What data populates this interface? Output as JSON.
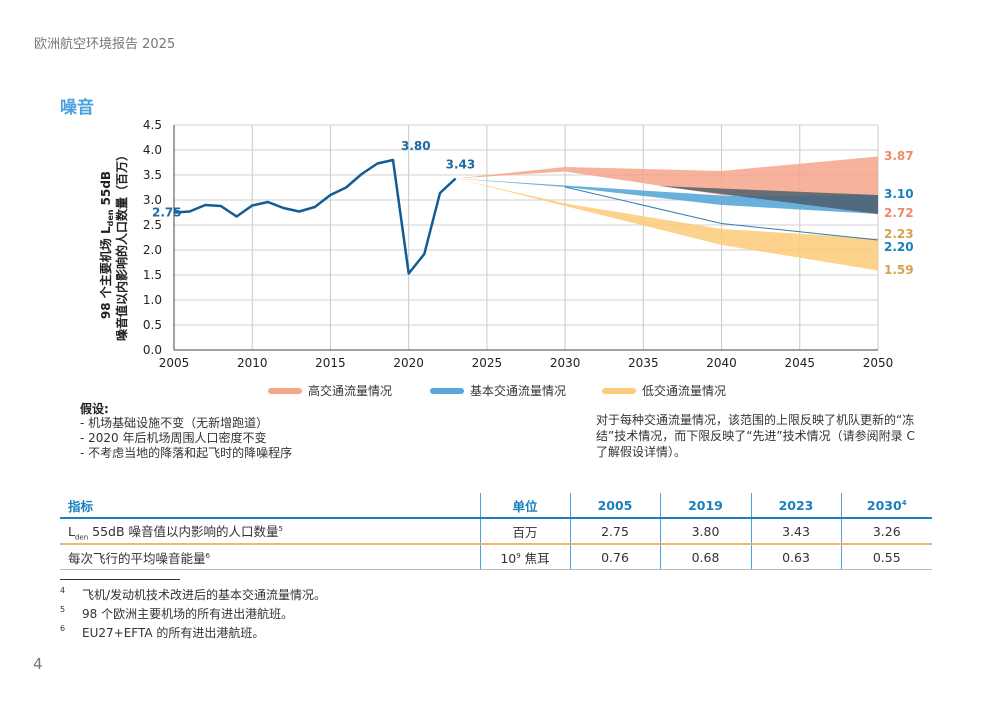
{
  "header": "欧洲航空环境报告 2025",
  "section_title": "噪音",
  "chart_data": {
    "type": "line",
    "ylabel_line1": "98 个主要机场",
    "ylabel_sub": "den",
    "ylabel_line1b": "55dB",
    "ylabel_line2": "噪音值以内影响的人口数量（百万）",
    "ylabel_prefix": "L",
    "xlim": [
      2005,
      2050
    ],
    "ylim": [
      0,
      4.5
    ],
    "xticks": [
      "2005",
      "2010",
      "2015",
      "2020",
      "2025",
      "2030",
      "2035",
      "2040",
      "2045",
      "2050"
    ],
    "yticks": [
      "0.0",
      "0.5",
      "1.0",
      "1.5",
      "2.0",
      "2.5",
      "3.0",
      "3.5",
      "4.0",
      "4.5"
    ],
    "history": {
      "x": [
        2005,
        2006,
        2007,
        2008,
        2009,
        2010,
        2011,
        2012,
        2013,
        2014,
        2015,
        2016,
        2017,
        2018,
        2019,
        2020,
        2021,
        2022,
        2023
      ],
      "y": [
        2.75,
        2.77,
        2.9,
        2.88,
        2.67,
        2.89,
        2.96,
        2.84,
        2.77,
        2.86,
        3.1,
        3.25,
        3.52,
        3.73,
        3.8,
        1.53,
        1.92,
        3.14,
        3.43
      ]
    },
    "history_labels": [
      {
        "x": 2005,
        "y": 2.75,
        "text": "2.75"
      },
      {
        "x": 2019,
        "y": 3.8,
        "text": "3.80"
      },
      {
        "x": 2023,
        "y": 3.43,
        "text": "3.43"
      }
    ],
    "bands": [
      {
        "name": "高交通流量情况",
        "color": "#f4a58a",
        "x": [
          2023,
          2030,
          2040,
          2050
        ],
        "upper": [
          3.43,
          3.66,
          3.58,
          3.87
        ],
        "lower": [
          3.43,
          3.57,
          3.1,
          3.1
        ]
      },
      {
        "name": "基本交通流量情况",
        "color": "#5aa7d9",
        "x": [
          2023,
          2030,
          2040,
          2050
        ],
        "upper": [
          3.43,
          3.29,
          3.09,
          3.1
        ],
        "lower": [
          3.43,
          3.26,
          2.9,
          2.72
        ]
      },
      {
        "name": "低交通流量情况",
        "color": "#fdca78",
        "x": [
          2023,
          2030,
          2040,
          2050
        ],
        "upper": [
          3.43,
          2.93,
          2.42,
          2.23
        ],
        "lower": [
          3.43,
          2.88,
          2.1,
          1.59
        ]
      }
    ],
    "base_lower": {
      "x": [
        2023,
        2030,
        2040,
        2050
      ],
      "y": [
        3.43,
        3.26,
        2.53,
        2.2
      ]
    },
    "end_labels": [
      {
        "text": "3.87",
        "y": 3.87,
        "color": "#ee8a6c"
      },
      {
        "text": "3.10",
        "y": 3.1,
        "color": "#1a7fc0"
      },
      {
        "text": "2.72",
        "y": 2.72,
        "color": "#ee8a6c"
      },
      {
        "text": "2.23",
        "y": 2.23,
        "color": "#d9a050"
      },
      {
        "text": "2.20",
        "y": 2.2,
        "color": "#1a7fc0"
      },
      {
        "text": "1.59",
        "y": 1.59,
        "color": "#d9a050"
      }
    ]
  },
  "legend": [
    {
      "label": "高交通流量情况",
      "color": "#f4a58a"
    },
    {
      "label": "基本交通流量情况",
      "color": "#5aa7d9"
    },
    {
      "label": "低交通流量情况",
      "color": "#fdca78"
    }
  ],
  "assumptions": {
    "title": "假设:",
    "items": [
      "- 机场基础设施不变（无新增跑道）",
      "- 2020 年后机场周围人口密度不变",
      "- 不考虑当地的降落和起飞时的降噪程序"
    ]
  },
  "note": "对于每种交通流量情况，该范围的上限反映了机队更新的“冻结”技术情况，而下限反映了“先进”技术情况（请参阅附录 C 了解假设详情）。",
  "table": {
    "headers": [
      "指标",
      "单位",
      "2005",
      "2019",
      "2023",
      "2030"
    ],
    "header_last_sup": "4",
    "rows": [
      {
        "ind_prefix": "L",
        "ind_sub": "den",
        "ind_rest": " 55dB 噪音值以内影响的人口数量",
        "ind_sup": "5",
        "unit": "百万",
        "unit_sup": "",
        "unit_base": "",
        "v2005": "2.75",
        "v2019": "3.80",
        "v2023": "3.43",
        "v2030": "3.26"
      },
      {
        "ind_prefix": "",
        "ind_sub": "",
        "ind_rest": "每次飞行的平均噪音能量",
        "ind_sup": "6",
        "unit": " 焦耳",
        "unit_base": "10",
        "unit_sup": "9",
        "v2005": "0.76",
        "v2019": "0.68",
        "v2023": "0.63",
        "v2030": "0.55"
      }
    ]
  },
  "footnotes": [
    {
      "num": "4",
      "text": "飞机/发动机技术改进后的基本交通流量情况。"
    },
    {
      "num": "5",
      "text": "98 个欧洲主要机场的所有进出港航班。"
    },
    {
      "num": "6",
      "text": "EU27+EFTA 的所有进出港航班。"
    }
  ],
  "page_number": "4"
}
